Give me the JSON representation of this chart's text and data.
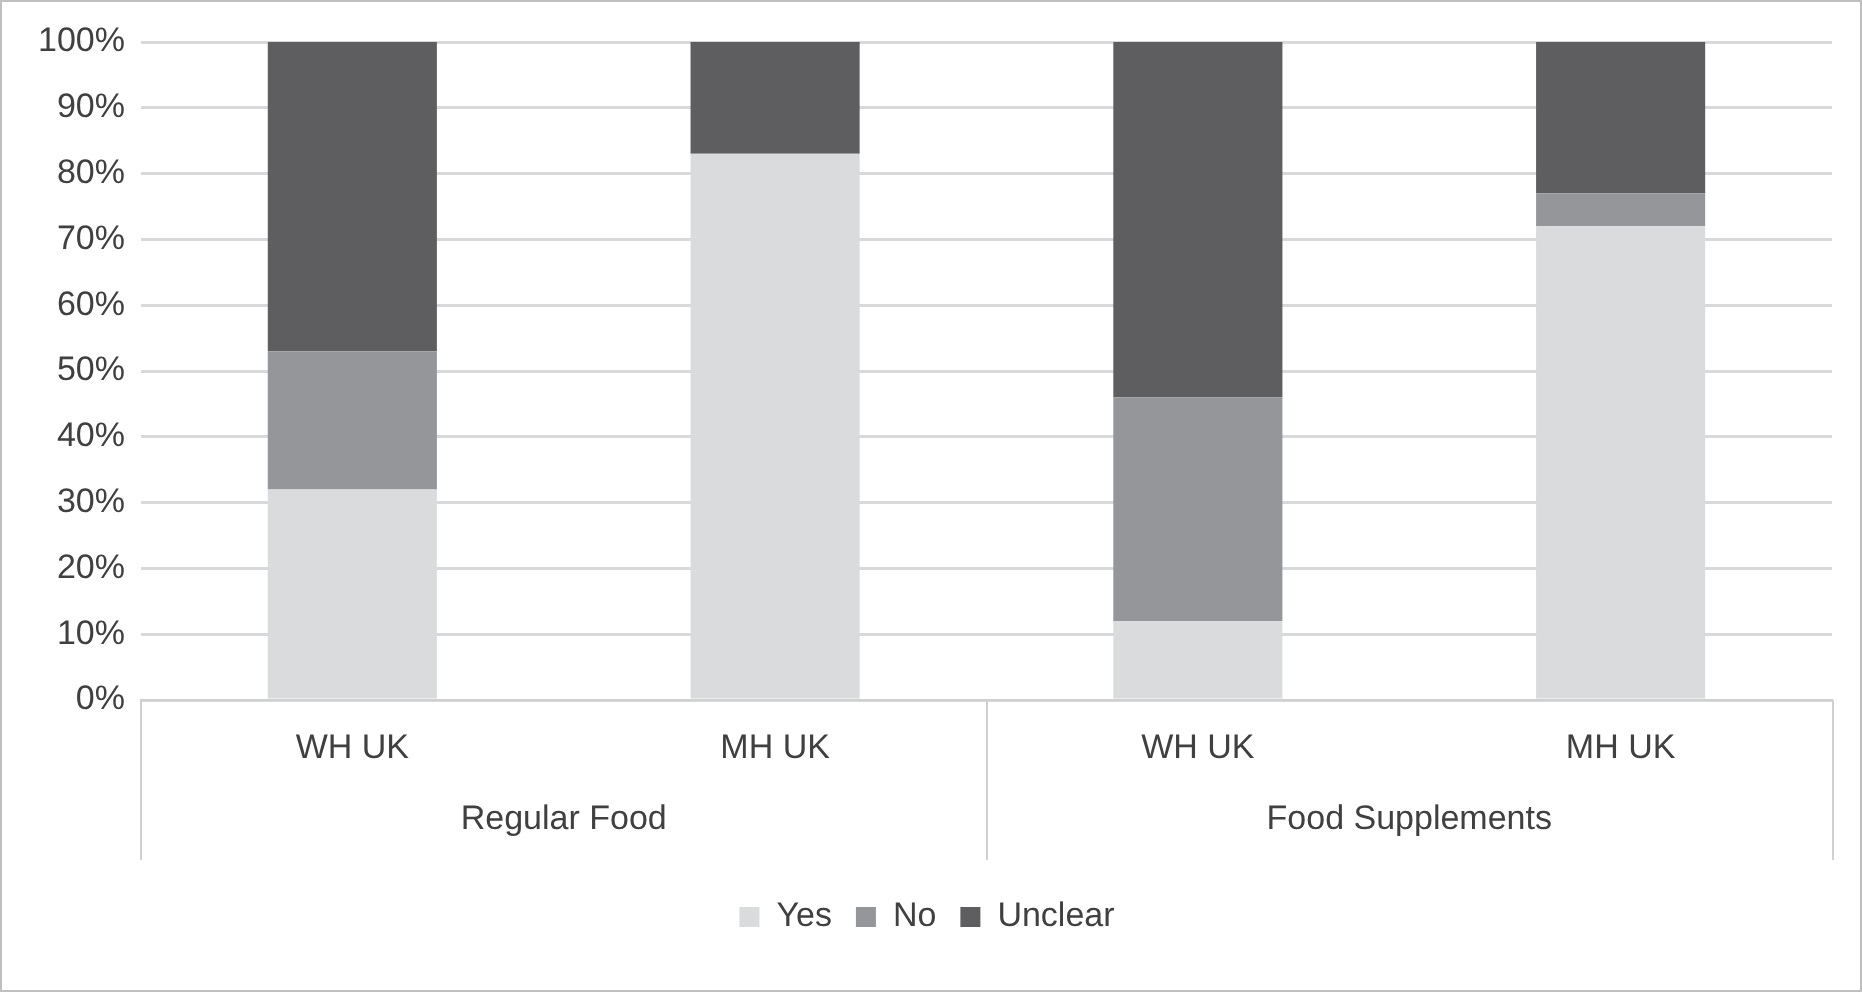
{
  "chart_data": {
    "type": "bar",
    "stacked": true,
    "categories": [
      "WH UK",
      "MH UK",
      "WH UK",
      "MH UK"
    ],
    "series": [
      {
        "name": "Yes",
        "color": "#dadbdd",
        "values": [
          32,
          83,
          12,
          72
        ]
      },
      {
        "name": "No",
        "color": "#959699",
        "values": [
          21,
          0,
          34,
          5
        ]
      },
      {
        "name": "Unclear",
        "color": "#5e5e60",
        "values": [
          47,
          17,
          54,
          23
        ]
      }
    ],
    "annotations": [
      "Regular Food",
      "Food Supplements"
    ],
    "ylim": [
      0,
      100
    ],
    "yticks": [
      {
        "value": 0,
        "label": "0%"
      },
      {
        "value": 10,
        "label": "10%"
      },
      {
        "value": 20,
        "label": "20%"
      },
      {
        "value": 30,
        "label": "30%"
      },
      {
        "value": 40,
        "label": "40%"
      },
      {
        "value": 50,
        "label": "50%"
      },
      {
        "value": 60,
        "label": "60%"
      },
      {
        "value": 70,
        "label": "70%"
      },
      {
        "value": 80,
        "label": "80%"
      },
      {
        "value": 90,
        "label": "90%"
      },
      {
        "value": 100,
        "label": "100%"
      }
    ],
    "grid": "y",
    "legend": "bottom"
  }
}
